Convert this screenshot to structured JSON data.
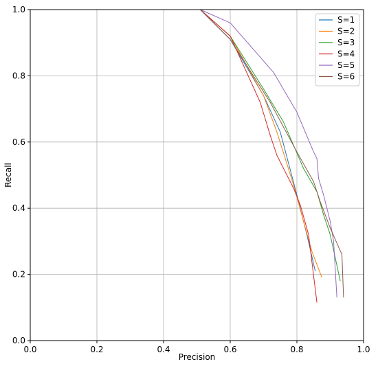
{
  "chart_data": {
    "type": "line",
    "title": "",
    "xlabel": "Precision",
    "ylabel": "Recall",
    "xlim": [
      0.0,
      1.0
    ],
    "ylim": [
      0.0,
      1.0
    ],
    "xticks": [
      0.0,
      0.2,
      0.4,
      0.6,
      0.8,
      1.0
    ],
    "yticks": [
      0.0,
      0.2,
      0.4,
      0.6,
      0.8,
      1.0
    ],
    "xtick_labels": [
      "0.0",
      "0.2",
      "0.4",
      "0.6",
      "0.8",
      "1.0"
    ],
    "ytick_labels": [
      "0.0",
      "0.2",
      "0.4",
      "0.6",
      "0.8",
      "1.0"
    ],
    "grid": true,
    "legend_position": "top-right",
    "series": [
      {
        "name": "S=1",
        "color": "#1f77b4",
        "x": [
          0.51,
          0.6,
          0.7,
          0.75,
          0.8,
          0.83,
          0.855
        ],
        "y": [
          1.0,
          0.91,
          0.74,
          0.63,
          0.44,
          0.32,
          0.21
        ]
      },
      {
        "name": "S=2",
        "color": "#ff7f0e",
        "x": [
          0.51,
          0.6,
          0.7,
          0.74,
          0.79,
          0.82,
          0.845,
          0.875
        ],
        "y": [
          1.0,
          0.92,
          0.74,
          0.63,
          0.47,
          0.36,
          0.27,
          0.19
        ]
      },
      {
        "name": "S=3",
        "color": "#2ca02c",
        "x": [
          0.51,
          0.6,
          0.7,
          0.76,
          0.82,
          0.86,
          0.88,
          0.9,
          0.93
        ],
        "y": [
          1.0,
          0.92,
          0.76,
          0.66,
          0.52,
          0.45,
          0.38,
          0.32,
          0.18
        ]
      },
      {
        "name": "S=4",
        "color": "#d62728",
        "x": [
          0.51,
          0.6,
          0.69,
          0.72,
          0.74,
          0.79,
          0.81,
          0.835,
          0.86
        ],
        "y": [
          1.0,
          0.92,
          0.72,
          0.62,
          0.56,
          0.46,
          0.41,
          0.32,
          0.115
        ]
      },
      {
        "name": "S=5",
        "color": "#9467bd",
        "x": [
          0.51,
          0.6,
          0.73,
          0.8,
          0.85,
          0.86,
          0.865,
          0.88,
          0.9,
          0.91,
          0.92
        ],
        "y": [
          1.0,
          0.96,
          0.81,
          0.69,
          0.57,
          0.55,
          0.49,
          0.44,
          0.36,
          0.3,
          0.13
        ]
      },
      {
        "name": "S=6",
        "color": "#8c564b",
        "x": [
          0.51,
          0.6,
          0.72,
          0.8,
          0.85,
          0.87,
          0.9,
          0.935,
          0.94
        ],
        "y": [
          1.0,
          0.91,
          0.72,
          0.57,
          0.48,
          0.42,
          0.34,
          0.26,
          0.13
        ]
      }
    ]
  }
}
